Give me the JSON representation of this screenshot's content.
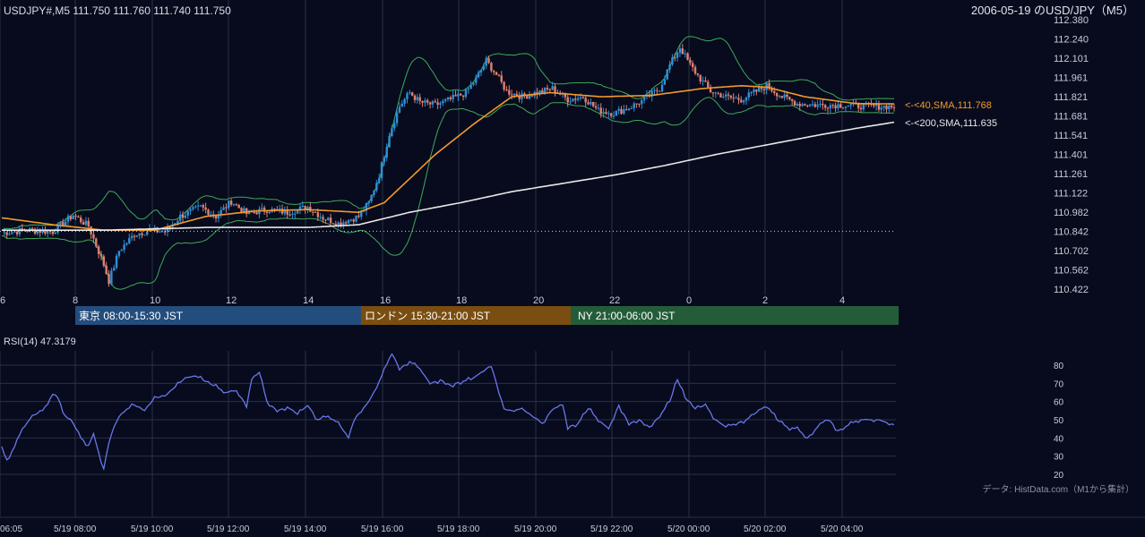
{
  "header": {
    "symbol_info": "USDJPY#,M5 111.750 111.760 111.740 111.750",
    "chart_title": "2006-05-19 のUSD/JPY（M5）"
  },
  "price_axis": {
    "ticks": [
      "112.380",
      "112.240",
      "112.101",
      "111.961",
      "111.821",
      "111.681",
      "111.541",
      "111.401",
      "111.261",
      "111.122",
      "110.982",
      "110.842",
      "110.702",
      "110.562",
      "110.422"
    ],
    "range": [
      110.422,
      112.38
    ]
  },
  "time_axis_top": {
    "ticks": [
      "6",
      "8",
      "10",
      "12",
      "14",
      "16",
      "18",
      "20",
      "22",
      "0",
      "2",
      "4"
    ]
  },
  "sessions": [
    {
      "label": "東京 08:00-15:30 JST",
      "color": "#234d7c"
    },
    {
      "label": "ロンドン 15:30-21:00 JST",
      "color": "#7a4d10"
    },
    {
      "label": "NY 21:00-06:00 JST",
      "color": "#245c3a"
    }
  ],
  "ma_labels": {
    "sma40": "<-<40,SMA,111.768",
    "sma200": "<-<200,SMA,111.635"
  },
  "rsi": {
    "title": "RSI(14) 47.3179",
    "ticks": [
      "80",
      "70",
      "60",
      "50",
      "40",
      "30",
      "20"
    ],
    "range": [
      20,
      80
    ]
  },
  "source_note": "データ: HistData.com（M1から集計）",
  "time_axis_bottom": {
    "ticks": [
      "06:05",
      "5/19 08:00",
      "5/19 10:00",
      "5/19 12:00",
      "5/19 14:00",
      "5/19 16:00",
      "5/19 18:00",
      "5/19 20:00",
      "5/19 22:00",
      "5/20 00:00",
      "5/20 02:00",
      "5/20 04:00"
    ]
  },
  "colors": {
    "background": "#070b1d",
    "bull_candle": "#2f8fd8",
    "bear_candle": "#e0806f",
    "sma40": "#f39a2c",
    "sma200": "#e8e8e8",
    "bollinger": "#3fa85a",
    "rsi_line": "#6a76e8",
    "grid": "#2a3045"
  },
  "chart_data": {
    "type": "candlestick",
    "price_axis_range": [
      110.422,
      112.38
    ],
    "reference_level": 110.842,
    "close_path_knots": [
      [
        0,
        110.83
      ],
      [
        10,
        110.85
      ],
      [
        20,
        110.84
      ],
      [
        28,
        110.96
      ],
      [
        34,
        110.88
      ],
      [
        40,
        110.6
      ],
      [
        42,
        110.48
      ],
      [
        46,
        110.7
      ],
      [
        52,
        110.82
      ],
      [
        58,
        110.85
      ],
      [
        64,
        110.84
      ],
      [
        70,
        110.95
      ],
      [
        78,
        111.02
      ],
      [
        84,
        110.95
      ],
      [
        90,
        111.06
      ],
      [
        96,
        110.97
      ],
      [
        104,
        111.0
      ],
      [
        112,
        110.98
      ],
      [
        120,
        111.02
      ],
      [
        126,
        110.94
      ],
      [
        132,
        110.9
      ],
      [
        140,
        110.95
      ],
      [
        144,
        111.05
      ],
      [
        148,
        111.25
      ],
      [
        152,
        111.55
      ],
      [
        156,
        111.75
      ],
      [
        160,
        111.85
      ],
      [
        164,
        111.78
      ],
      [
        170,
        111.76
      ],
      [
        176,
        111.8
      ],
      [
        182,
        111.85
      ],
      [
        186,
        111.95
      ],
      [
        190,
        112.08
      ],
      [
        194,
        111.98
      ],
      [
        198,
        111.86
      ],
      [
        204,
        111.82
      ],
      [
        210,
        111.85
      ],
      [
        216,
        111.88
      ],
      [
        222,
        111.8
      ],
      [
        228,
        111.82
      ],
      [
        234,
        111.72
      ],
      [
        240,
        111.7
      ],
      [
        246,
        111.74
      ],
      [
        252,
        111.8
      ],
      [
        258,
        111.88
      ],
      [
        262,
        112.05
      ],
      [
        266,
        112.18
      ],
      [
        270,
        112.05
      ],
      [
        274,
        111.95
      ],
      [
        278,
        111.86
      ],
      [
        284,
        111.82
      ],
      [
        290,
        111.8
      ],
      [
        296,
        111.86
      ],
      [
        300,
        111.9
      ],
      [
        306,
        111.82
      ],
      [
        312,
        111.77
      ],
      [
        320,
        111.76
      ],
      [
        330,
        111.76
      ],
      [
        340,
        111.75
      ],
      [
        350,
        111.75
      ]
    ],
    "sma40_knots": [
      [
        0,
        110.94
      ],
      [
        20,
        110.89
      ],
      [
        40,
        110.85
      ],
      [
        60,
        110.85
      ],
      [
        80,
        110.95
      ],
      [
        100,
        110.99
      ],
      [
        120,
        111.0
      ],
      [
        140,
        110.98
      ],
      [
        150,
        111.05
      ],
      [
        170,
        111.4
      ],
      [
        185,
        111.62
      ],
      [
        200,
        111.82
      ],
      [
        215,
        111.85
      ],
      [
        235,
        111.82
      ],
      [
        255,
        111.83
      ],
      [
        275,
        111.88
      ],
      [
        290,
        111.9
      ],
      [
        300,
        111.89
      ],
      [
        315,
        111.82
      ],
      [
        335,
        111.77
      ],
      [
        350,
        111.768
      ]
    ],
    "sma200_knots": [
      [
        0,
        110.85
      ],
      [
        40,
        110.85
      ],
      [
        80,
        110.87
      ],
      [
        120,
        110.87
      ],
      [
        140,
        110.89
      ],
      [
        160,
        110.98
      ],
      [
        180,
        111.05
      ],
      [
        200,
        111.13
      ],
      [
        220,
        111.19
      ],
      [
        240,
        111.25
      ],
      [
        260,
        111.32
      ],
      [
        280,
        111.4
      ],
      [
        300,
        111.47
      ],
      [
        320,
        111.54
      ],
      [
        335,
        111.59
      ],
      [
        350,
        111.635
      ]
    ],
    "rsi_knots": [
      [
        0,
        34
      ],
      [
        2,
        28
      ],
      [
        5,
        35
      ],
      [
        8,
        45
      ],
      [
        12,
        52
      ],
      [
        16,
        55
      ],
      [
        20,
        64
      ],
      [
        22,
        62
      ],
      [
        25,
        52
      ],
      [
        28,
        48
      ],
      [
        31,
        40
      ],
      [
        34,
        36
      ],
      [
        36,
        42
      ],
      [
        38,
        32
      ],
      [
        40,
        23
      ],
      [
        42,
        38
      ],
      [
        45,
        50
      ],
      [
        48,
        55
      ],
      [
        52,
        58
      ],
      [
        56,
        55
      ],
      [
        60,
        62
      ],
      [
        64,
        63
      ],
      [
        68,
        68
      ],
      [
        72,
        73
      ],
      [
        76,
        74
      ],
      [
        80,
        71
      ],
      [
        84,
        68
      ],
      [
        88,
        65
      ],
      [
        92,
        66
      ],
      [
        96,
        58
      ],
      [
        98,
        72
      ],
      [
        101,
        76
      ],
      [
        104,
        60
      ],
      [
        108,
        55
      ],
      [
        112,
        57
      ],
      [
        116,
        53
      ],
      [
        120,
        58
      ],
      [
        124,
        50
      ],
      [
        128,
        52
      ],
      [
        132,
        48
      ],
      [
        136,
        40
      ],
      [
        138,
        50
      ],
      [
        141,
        55
      ],
      [
        144,
        60
      ],
      [
        147,
        68
      ],
      [
        150,
        77
      ],
      [
        153,
        87
      ],
      [
        156,
        78
      ],
      [
        160,
        82
      ],
      [
        164,
        78
      ],
      [
        168,
        70
      ],
      [
        172,
        72
      ],
      [
        176,
        69
      ],
      [
        180,
        71
      ],
      [
        184,
        72
      ],
      [
        188,
        76
      ],
      [
        192,
        80
      ],
      [
        194,
        70
      ],
      [
        197,
        56
      ],
      [
        200,
        55
      ],
      [
        204,
        56
      ],
      [
        208,
        52
      ],
      [
        212,
        48
      ],
      [
        216,
        56
      ],
      [
        220,
        58
      ],
      [
        222,
        46
      ],
      [
        226,
        48
      ],
      [
        230,
        56
      ],
      [
        234,
        50
      ],
      [
        238,
        45
      ],
      [
        242,
        58
      ],
      [
        246,
        48
      ],
      [
        250,
        50
      ],
      [
        254,
        46
      ],
      [
        258,
        52
      ],
      [
        262,
        60
      ],
      [
        265,
        72
      ],
      [
        268,
        62
      ],
      [
        272,
        56
      ],
      [
        276,
        58
      ],
      [
        280,
        50
      ],
      [
        284,
        46
      ],
      [
        288,
        48
      ],
      [
        292,
        50
      ],
      [
        296,
        54
      ],
      [
        300,
        58
      ],
      [
        304,
        50
      ],
      [
        308,
        46
      ],
      [
        312,
        45
      ],
      [
        316,
        40
      ],
      [
        320,
        46
      ],
      [
        324,
        51
      ],
      [
        328,
        44
      ],
      [
        332,
        47
      ],
      [
        336,
        50
      ],
      [
        340,
        50
      ],
      [
        344,
        50
      ],
      [
        348,
        48
      ],
      [
        350,
        47.3179
      ]
    ]
  }
}
